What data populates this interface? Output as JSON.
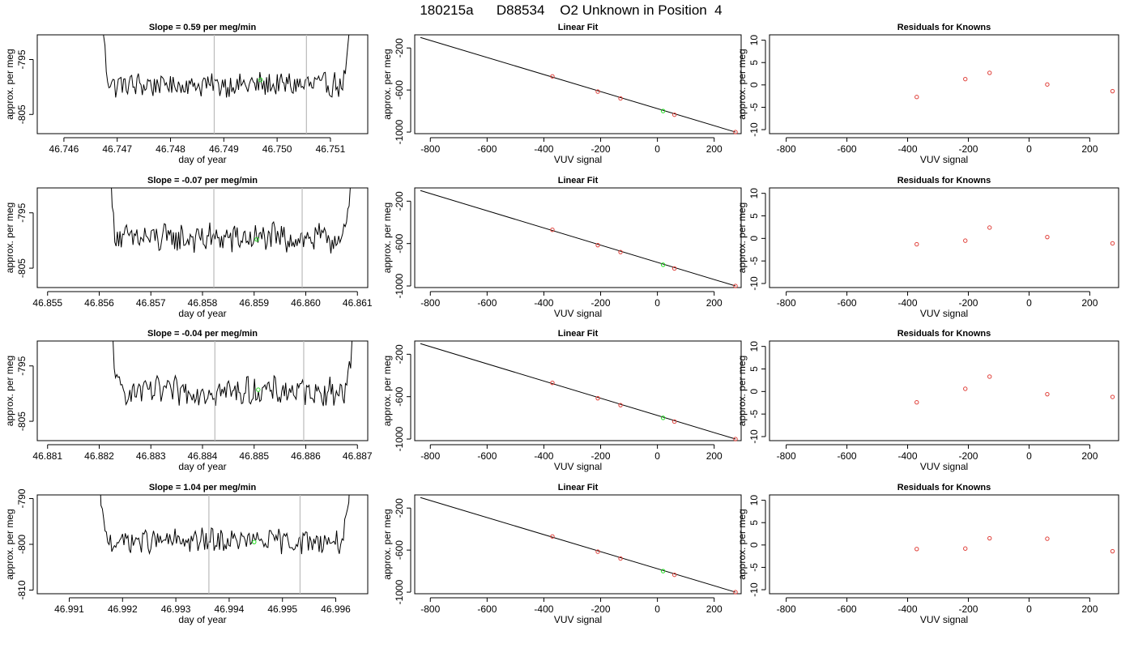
{
  "figure_title": "180215a      D88534    O2 Unknown in Position  4",
  "colors": {
    "known_point": "#e0403a",
    "unknown_point": "#22dd22",
    "trace": "#000000",
    "window_line": "#bbbbbb"
  },
  "chart_data": [
    {
      "row": 1,
      "time_trace": {
        "type": "line",
        "title": "Slope =  0.59  per meg/min",
        "xlabel": "day of year",
        "ylabel": "approx. per meg",
        "xlim": [
          46.7455,
          46.7517
        ],
        "ylim": [
          -808.5,
          -790.5
        ],
        "xticks": [
          "46.746",
          "46.747",
          "46.748",
          "46.749",
          "46.750",
          "46.751"
        ],
        "yticks": [
          "-795",
          "-805"
        ],
        "trace_start": 46.74667,
        "trace_end": 46.75143,
        "baseline": -799.6,
        "noise_amplitude": 1.5,
        "window": [
          46.74882,
          46.75055
        ],
        "unknown_point": {
          "x": 46.74969,
          "y": -798.7
        }
      },
      "linear_fit": {
        "type": "scatter",
        "title": "Linear Fit",
        "xlabel": "VUV signal",
        "ylabel": "approx. per meg",
        "xlim": [
          -855,
          295
        ],
        "ylim": [
          -1015,
          -75
        ],
        "xticks": [
          "-800",
          "-600",
          "-400",
          "-200",
          "0",
          "200"
        ],
        "yticks": [
          "-200",
          "-600",
          "-1000"
        ],
        "line": {
          "x": [
            -835,
            275
          ],
          "y": [
            -100,
            -1000
          ]
        },
        "knowns": {
          "x": [
            -370,
            -210,
            -130,
            60,
            275
          ],
          "y": [
            -470,
            -615,
            -680,
            -835,
            -1000
          ]
        },
        "unknown": {
          "x": 20,
          "y": -800
        }
      },
      "residuals": {
        "type": "scatter",
        "title": "Residuals for Knowns",
        "xlabel": "VUV signal",
        "ylabel": "approx. per meg",
        "xlim": [
          -855,
          295
        ],
        "ylim": [
          -10.9,
          11.2
        ],
        "xticks": [
          "-800",
          "-600",
          "-400",
          "-200",
          "0",
          "200"
        ],
        "yticks": [
          "10",
          "5",
          "0",
          "-5",
          "-10"
        ],
        "x": [
          -370,
          -210,
          -130,
          60,
          275
        ],
        "y": [
          -2.7,
          1.3,
          2.7,
          0.1,
          -1.4
        ]
      }
    },
    {
      "row": 2,
      "time_trace": {
        "type": "line",
        "title": "Slope =  -0.07  per meg/min",
        "xlabel": "day of year",
        "ylabel": "approx. per meg",
        "xlim": [
          46.8548,
          46.8612
        ],
        "ylim": [
          -808.5,
          -790.5
        ],
        "xticks": [
          "46.855",
          "46.856",
          "46.857",
          "46.858",
          "46.859",
          "46.860",
          "46.861"
        ],
        "yticks": [
          "-795",
          "-805"
        ],
        "trace_start": 46.85615,
        "trace_end": 46.86094,
        "baseline": -799.6,
        "noise_amplitude": 1.8,
        "window": [
          46.85822,
          46.85993
        ],
        "unknown_point": {
          "x": 46.85905,
          "y": -799.8
        }
      },
      "linear_fit": {
        "type": "scatter",
        "title": "Linear Fit",
        "xlabel": "VUV signal",
        "ylabel": "approx. per meg",
        "xlim": [
          -855,
          295
        ],
        "ylim": [
          -1015,
          -75
        ],
        "xticks": [
          "-800",
          "-600",
          "-400",
          "-200",
          "0",
          "200"
        ],
        "yticks": [
          "-200",
          "-600",
          "-1000"
        ],
        "line": {
          "x": [
            -835,
            275
          ],
          "y": [
            -100,
            -1000
          ]
        },
        "knowns": {
          "x": [
            -370,
            -210,
            -130,
            60,
            275
          ],
          "y": [
            -470,
            -615,
            -680,
            -835,
            -1000
          ]
        },
        "unknown": {
          "x": 20,
          "y": -800
        }
      },
      "residuals": {
        "type": "scatter",
        "title": "Residuals for Knowns",
        "xlabel": "VUV signal",
        "ylabel": "approx. per meg",
        "xlim": [
          -855,
          295
        ],
        "ylim": [
          -10.9,
          11.2
        ],
        "xticks": [
          "-800",
          "-600",
          "-400",
          "-200",
          "0",
          "200"
        ],
        "yticks": [
          "10",
          "5",
          "0",
          "-5",
          "-10"
        ],
        "x": [
          -370,
          -210,
          -130,
          60,
          275
        ],
        "y": [
          -1.3,
          -0.5,
          2.4,
          0.3,
          -1.1
        ]
      }
    },
    {
      "row": 3,
      "time_trace": {
        "type": "line",
        "title": "Slope =  -0.04  per meg/min",
        "xlabel": "day of year",
        "ylabel": "approx. per meg",
        "xlim": [
          46.8808,
          46.8872
        ],
        "ylim": [
          -808.5,
          -790.5
        ],
        "xticks": [
          "46.881",
          "46.882",
          "46.883",
          "46.884",
          "46.885",
          "46.886",
          "46.887"
        ],
        "yticks": [
          "-795",
          "-805"
        ],
        "trace_start": 46.88219,
        "trace_end": 46.88697,
        "baseline": -799.6,
        "noise_amplitude": 1.7,
        "window": [
          46.88424,
          46.88596
        ],
        "unknown_point": {
          "x": 46.88508,
          "y": -799.3
        }
      },
      "linear_fit": {
        "type": "scatter",
        "title": "Linear Fit",
        "xlabel": "VUV signal",
        "ylabel": "approx. per meg",
        "xlim": [
          -855,
          295
        ],
        "ylim": [
          -1015,
          -75
        ],
        "xticks": [
          "-800",
          "-600",
          "-400",
          "-200",
          "0",
          "200"
        ],
        "yticks": [
          "-200",
          "-600",
          "-1000"
        ],
        "line": {
          "x": [
            -835,
            275
          ],
          "y": [
            -100,
            -1000
          ]
        },
        "knowns": {
          "x": [
            -370,
            -210,
            -130,
            60,
            275
          ],
          "y": [
            -470,
            -615,
            -680,
            -835,
            -1000
          ]
        },
        "unknown": {
          "x": 20,
          "y": -800
        }
      },
      "residuals": {
        "type": "scatter",
        "title": "Residuals for Knowns",
        "xlabel": "VUV signal",
        "ylabel": "approx. per meg",
        "xlim": [
          -855,
          295
        ],
        "ylim": [
          -10.9,
          11.2
        ],
        "xticks": [
          "-800",
          "-600",
          "-400",
          "-200",
          "0",
          "200"
        ],
        "yticks": [
          "10",
          "5",
          "0",
          "-5",
          "-10"
        ],
        "x": [
          -370,
          -210,
          -130,
          60,
          275
        ],
        "y": [
          -2.4,
          0.6,
          3.3,
          -0.6,
          -1.2
        ]
      }
    },
    {
      "row": 4,
      "time_trace": {
        "type": "line",
        "title": "Slope =  1.04  per meg/min",
        "xlabel": "day of year",
        "ylabel": "approx. per meg",
        "xlim": [
          46.9904,
          46.9966
        ],
        "ylim": [
          -810.8,
          -789.2
        ],
        "xticks": [
          "46.991",
          "46.992",
          "46.993",
          "46.994",
          "46.995",
          "46.996"
        ],
        "yticks": [
          "-790",
          "-800",
          "-810"
        ],
        "trace_start": 46.99152,
        "trace_end": 46.99632,
        "baseline": -799.3,
        "noise_amplitude": 1.8,
        "window": [
          46.99362,
          46.99533
        ],
        "unknown_point": {
          "x": 46.99447,
          "y": -799.5
        }
      },
      "linear_fit": {
        "type": "scatter",
        "title": "Linear Fit",
        "xlabel": "VUV signal",
        "ylabel": "approx. per meg",
        "xlim": [
          -855,
          295
        ],
        "ylim": [
          -1015,
          -75
        ],
        "xticks": [
          "-800",
          "-600",
          "-400",
          "-200",
          "0",
          "200"
        ],
        "yticks": [
          "-200",
          "-600",
          "-1000"
        ],
        "line": {
          "x": [
            -835,
            275
          ],
          "y": [
            -100,
            -1000
          ]
        },
        "knowns": {
          "x": [
            -370,
            -210,
            -130,
            60,
            275
          ],
          "y": [
            -470,
            -615,
            -680,
            -835,
            -1000
          ]
        },
        "unknown": {
          "x": 20,
          "y": -800
        }
      },
      "residuals": {
        "type": "scatter",
        "title": "Residuals for Knowns",
        "xlabel": "VUV signal",
        "ylabel": "approx. per meg",
        "xlim": [
          -855,
          295
        ],
        "ylim": [
          -10.9,
          11.2
        ],
        "xticks": [
          "-800",
          "-600",
          "-400",
          "-200",
          "0",
          "200"
        ],
        "yticks": [
          "10",
          "5",
          "0",
          "-5",
          "-10"
        ],
        "x": [
          -370,
          -210,
          -130,
          60,
          275
        ],
        "y": [
          -0.9,
          -0.8,
          1.5,
          1.4,
          -1.4
        ]
      }
    }
  ]
}
